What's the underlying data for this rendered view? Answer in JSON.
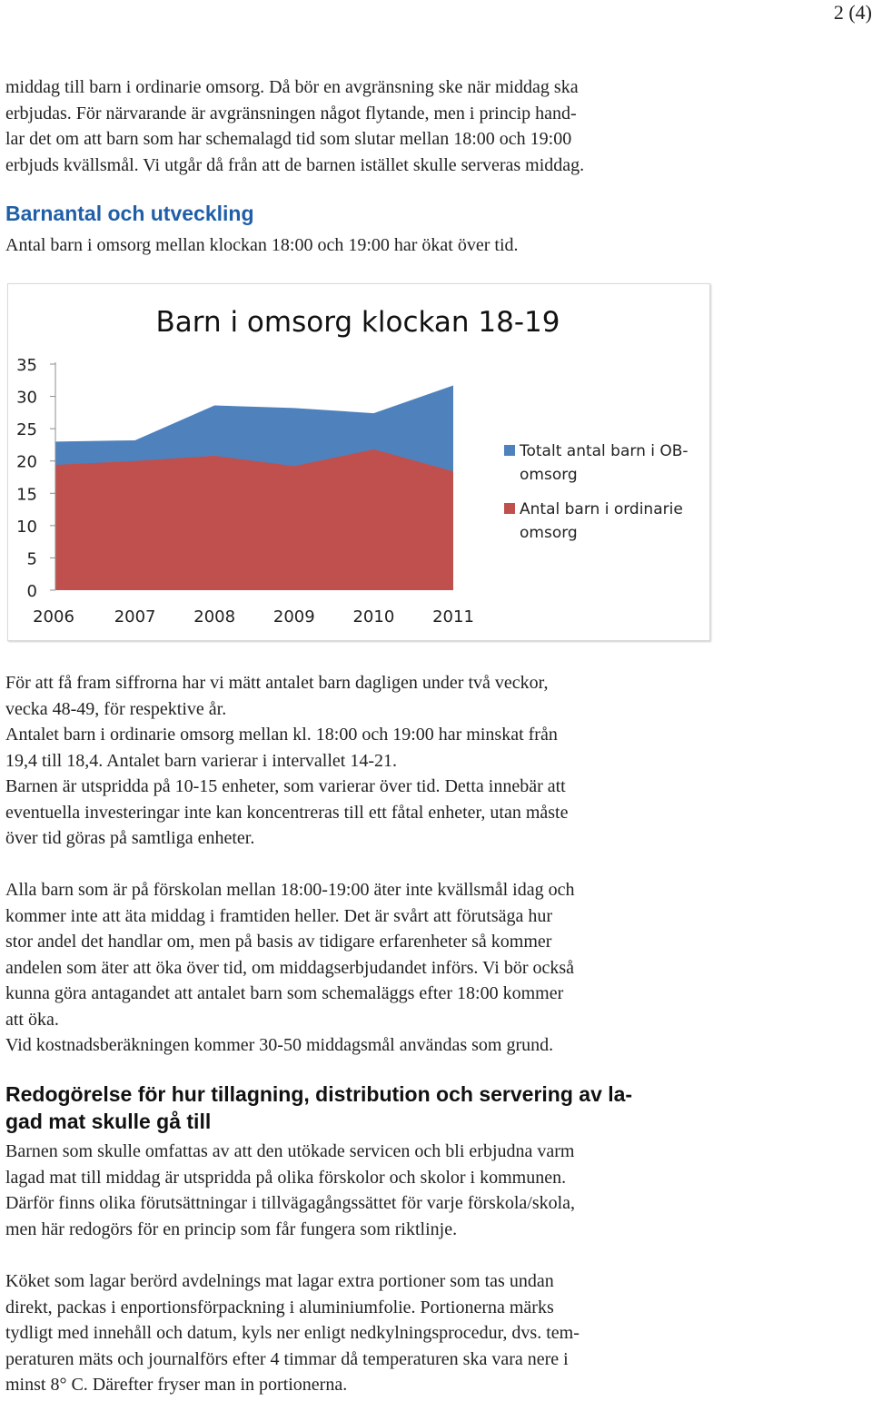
{
  "header": {
    "page_number": "2 (4)"
  },
  "intro": {
    "lines": [
      "middag till barn i ordinarie omsorg. Då bör en avgränsning ske när middag ska",
      "erbjudas. För närvarande är avgränsningen något flytande, men i princip hand-",
      "lar det om att barn som har schemalagd tid som slutar mellan 18:00 och 19:00",
      "erbjuds kvällsmål. Vi utgår då från att de barnen istället skulle serveras middag."
    ]
  },
  "section1": {
    "heading": "Barnantal och utveckling",
    "lead": "Antal barn i omsorg mellan klockan 18:00 och 19:00 har ökat över tid."
  },
  "chart_data": {
    "type": "area",
    "title": "Barn i omsorg klockan 18-19",
    "xlabel": "",
    "ylabel": "",
    "x": [
      "2006",
      "2007",
      "2008",
      "2009",
      "2010",
      "2011"
    ],
    "y_ticks": [
      "0",
      "5",
      "10",
      "15",
      "20",
      "25",
      "30",
      "35"
    ],
    "ylim": [
      0,
      35
    ],
    "grid": false,
    "legend_position": "right",
    "stacked": false,
    "series": [
      {
        "name": "Totalt antal barn i OB-omsorg",
        "values": [
          23,
          23.2,
          28.6,
          28.2,
          27.4,
          31.7
        ],
        "color": "#4f81bd"
      },
      {
        "name": "Antal barn i ordinarie omsorg",
        "values": [
          19.4,
          20,
          20.8,
          19.2,
          21.8,
          18.4
        ],
        "color": "#c0504d"
      }
    ]
  },
  "body": {
    "p1": [
      "För att få fram siffrorna har vi mätt antalet barn dagligen under två veckor,",
      "vecka 48-49, för respektive år.",
      "Antalet barn i ordinarie omsorg mellan kl. 18:00 och 19:00 har minskat från",
      "19,4 till 18,4. Antalet barn varierar i intervallet 14-21.",
      "Barnen är utspridda på 10-15 enheter, som varierar över tid. Detta innebär att",
      "eventuella investeringar inte kan koncentreras till ett fåtal enheter, utan måste",
      "över tid göras på samtliga enheter."
    ],
    "p2": [
      "Alla barn som är på förskolan mellan 18:00-19:00 äter inte kvällsmål idag och",
      "kommer inte att äta middag i framtiden heller. Det är svårt att förutsäga hur",
      "stor andel det handlar om, men på basis av tidigare erfarenheter så kommer",
      "andelen som äter att öka över tid, om middagserbjudandet införs. Vi bör också",
      "kunna göra antagandet att antalet barn som schemaläggs efter 18:00 kommer",
      "att öka.",
      "Vid kostnadsberäkningen kommer 30-50 middagsmål användas som grund."
    ]
  },
  "section2": {
    "heading_lines": [
      "Redogörelse för hur tillagning, distribution och servering av la-",
      "gad mat skulle gå till"
    ],
    "p1": [
      "Barnen som skulle omfattas av att den utökade servicen och bli erbjudna varm",
      "lagad mat till middag är utspridda på olika förskolor och skolor i kommunen.",
      "Därför finns olika förutsättningar i tillvägagångssättet för varje förskola/skola,",
      "men här redogörs för en princip som får fungera som riktlinje."
    ],
    "p2": [
      "Köket som lagar berörd avdelnings mat lagar extra portioner som tas undan",
      "direkt, packas i enportionsförpackning i aluminiumfolie. Portionerna märks",
      "tydligt med innehåll och datum, kyls ner enligt nedkylningsprocedur, dvs. tem-",
      "peraturen mäts och journalförs efter 4 timmar då temperaturen ska vara nere i",
      "minst 8° C. Därefter fryser man in portionerna."
    ]
  }
}
